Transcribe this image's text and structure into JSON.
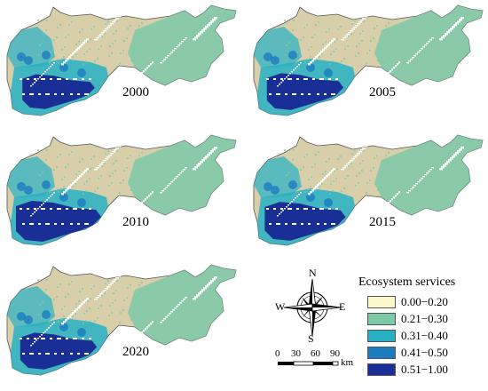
{
  "maps": [
    {
      "year": "2000"
    },
    {
      "year": "2005"
    },
    {
      "year": "2010"
    },
    {
      "year": "2015"
    },
    {
      "year": "2020"
    }
  ],
  "compass": {
    "n": "N",
    "s": "S",
    "e": "E",
    "w": "W"
  },
  "scale_bar": {
    "ticks": [
      "0",
      "30",
      "60",
      "90"
    ],
    "unit": "km"
  },
  "legend": {
    "title": "Ecosystem services",
    "items": [
      {
        "label": "0.00−0.20",
        "color": "#fbf7c8"
      },
      {
        "label": "0.21−0.30",
        "color": "#7cc9a8"
      },
      {
        "label": "0.31−0.40",
        "color": "#27b0c4"
      },
      {
        "label": "0.41−0.50",
        "color": "#1b7cc0"
      },
      {
        "label": "0.51−1.00",
        "color": "#1a2f95"
      }
    ]
  },
  "colors": {
    "low_beige": "#d8cfaa",
    "green": "#7cc9a8",
    "cyan": "#27b0c4",
    "blue": "#1b7cc0",
    "navy": "#1a2f95"
  }
}
